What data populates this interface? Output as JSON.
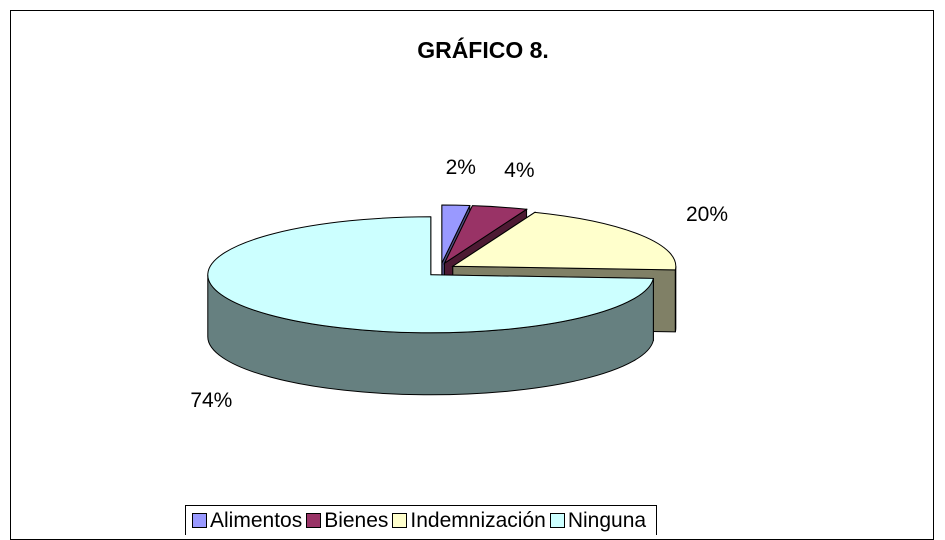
{
  "chart_data": {
    "type": "pie",
    "title": "GRÁFICO 8.",
    "categories": [
      "Alimentos",
      "Bienes",
      "Indemnización",
      "Ninguna"
    ],
    "values": [
      2,
      4,
      20,
      74
    ],
    "value_labels": [
      "2%",
      "4%",
      "20%",
      "74%"
    ],
    "colors": [
      "#9999ff",
      "#993366",
      "#ffffcc",
      "#ccffff"
    ],
    "legend": "bottom"
  }
}
